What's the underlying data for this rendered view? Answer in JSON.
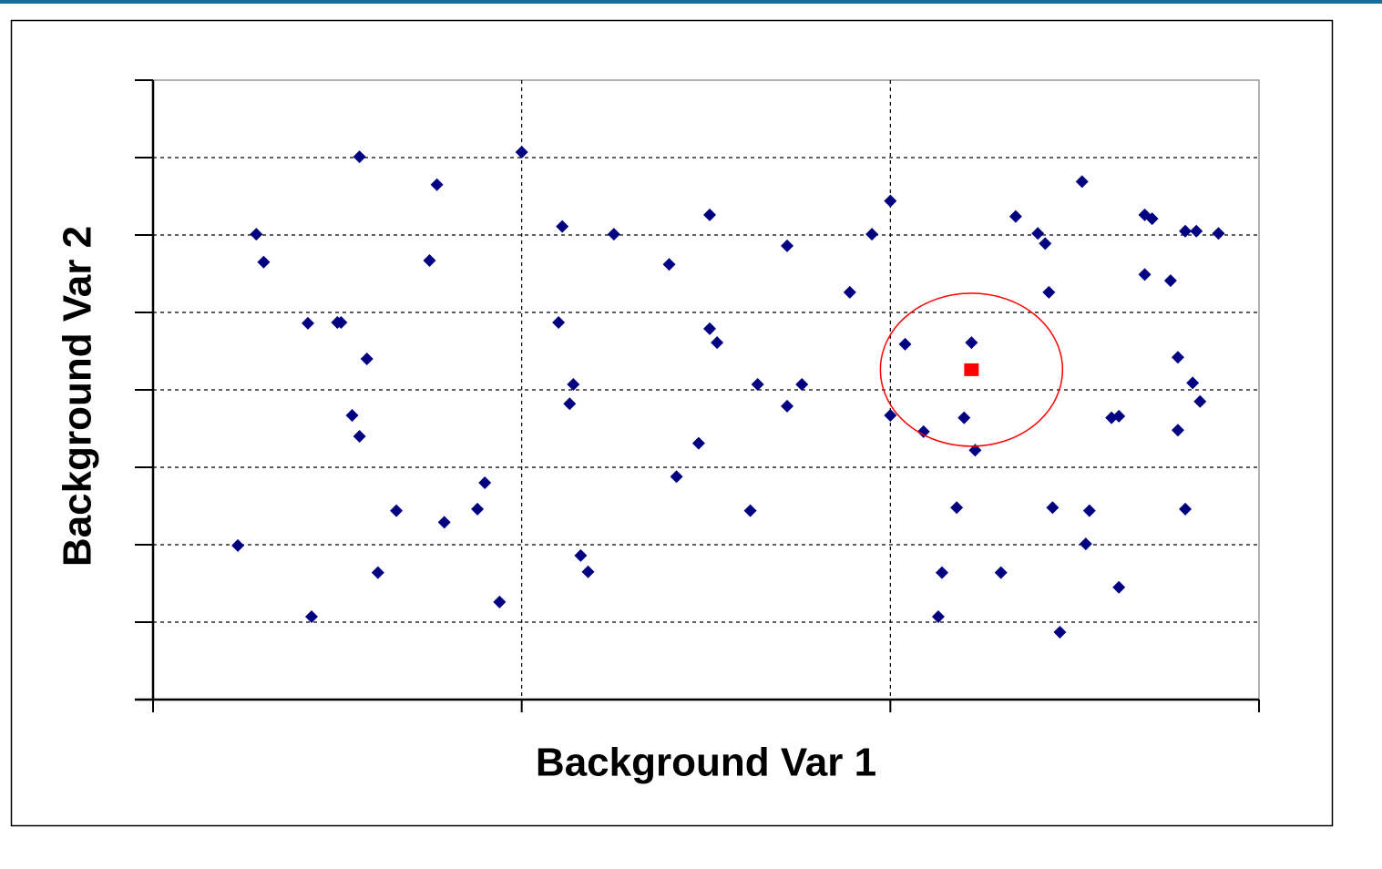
{
  "chart_data": {
    "type": "scatter",
    "x_label": "Background Var 1",
    "y_label": "Background Var 2",
    "xlim": [
      0,
      3
    ],
    "xticks": [
      0,
      1,
      2,
      3
    ],
    "ylim": [
      0,
      8
    ],
    "yticks": [
      0,
      1,
      2,
      3,
      4,
      5,
      6,
      7,
      8
    ],
    "grid": true,
    "series": [
      {
        "color": "#000080",
        "marker": "diamond",
        "x": [
          0.23,
          0.28,
          0.3,
          0.42,
          0.5,
          0.51,
          0.56,
          0.58,
          0.54,
          0.56,
          0.61,
          0.66,
          0.43,
          0.77,
          0.75,
          0.79,
          0.88,
          0.9,
          0.94,
          1.0,
          1.11,
          1.1,
          1.14,
          1.13,
          1.16,
          1.18,
          1.25,
          1.4,
          1.51,
          1.51,
          1.53,
          1.48,
          1.42,
          1.62,
          1.64,
          1.72,
          1.72,
          1.76,
          1.89,
          1.95,
          2.0,
          2.0,
          2.04,
          2.09,
          2.22,
          2.2,
          2.23,
          2.18,
          2.14,
          2.13,
          2.3,
          2.34,
          2.4,
          2.42,
          2.43,
          2.44,
          2.46,
          2.52,
          2.54,
          2.53,
          2.6,
          2.62,
          2.69,
          2.71,
          2.69,
          2.76,
          2.78,
          2.78,
          2.8,
          2.8,
          2.83,
          2.82,
          2.84,
          2.89,
          2.62
        ],
        "values": [
          1.99,
          6.01,
          5.65,
          4.86,
          4.87,
          4.87,
          7.01,
          4.4,
          3.67,
          3.4,
          1.64,
          2.44,
          1.07,
          6.65,
          5.67,
          2.29,
          2.46,
          2.8,
          1.26,
          7.07,
          6.11,
          4.87,
          4.07,
          3.82,
          1.86,
          1.65,
          6.01,
          5.62,
          6.26,
          4.79,
          4.61,
          3.31,
          2.88,
          2.44,
          4.07,
          5.86,
          3.79,
          4.07,
          5.26,
          6.01,
          6.44,
          3.67,
          4.59,
          3.46,
          4.61,
          3.64,
          3.22,
          2.48,
          1.64,
          1.07,
          1.64,
          6.24,
          6.02,
          5.89,
          5.26,
          2.48,
          0.87,
          6.69,
          2.44,
          2.01,
          3.64,
          1.45,
          6.26,
          6.21,
          5.49,
          5.41,
          4.42,
          3.48,
          2.46,
          6.05,
          6.05,
          4.09,
          3.85,
          6.02,
          3.66
        ]
      },
      {
        "color": "#ff0000",
        "marker": "square",
        "highlight_circle": true,
        "x": [
          2.22
        ],
        "values": [
          4.26
        ]
      }
    ]
  }
}
